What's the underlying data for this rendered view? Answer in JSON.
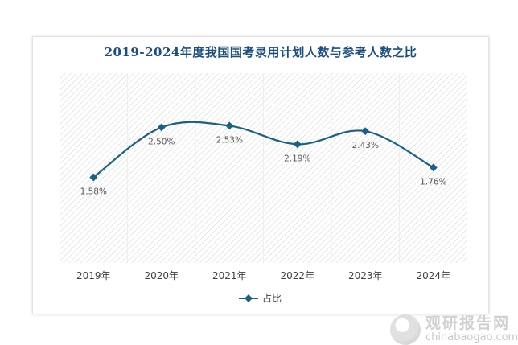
{
  "chart_data": {
    "type": "line",
    "title": "2019-2024年度我国国考录用计划人数与参考人数之比",
    "categories": [
      "2019年",
      "2020年",
      "2021年",
      "2022年",
      "2023年",
      "2024年"
    ],
    "series": [
      {
        "name": "占比",
        "values": [
          1.58,
          2.5,
          2.53,
          2.19,
          2.43,
          1.76
        ],
        "labels": [
          "1.58%",
          "2.50%",
          "2.53%",
          "2.19%",
          "2.43%",
          "1.76%"
        ]
      }
    ],
    "ylim": [
      0,
      3.5
    ],
    "grid": false,
    "legend": "bottom",
    "colors": {
      "line": "#1f5f7f",
      "title": "#1f4e79",
      "labels": "#595959",
      "plot_hatch": "#d9d9d9"
    }
  },
  "watermark": {
    "name": "观研报告网",
    "url": "chinabaogao.com"
  }
}
